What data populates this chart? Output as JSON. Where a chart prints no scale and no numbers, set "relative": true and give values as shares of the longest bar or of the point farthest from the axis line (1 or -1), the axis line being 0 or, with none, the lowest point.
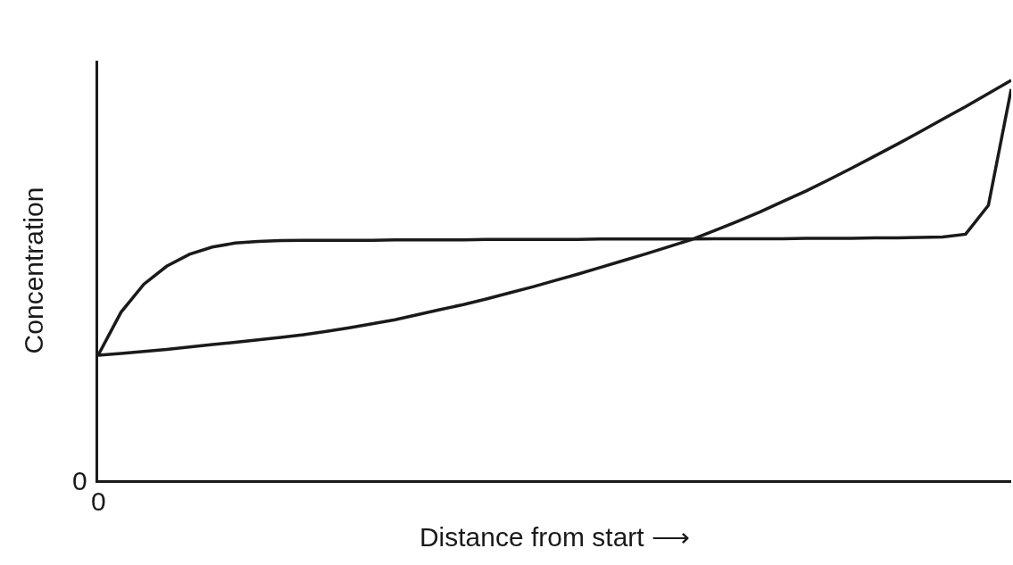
{
  "chart_data": {
    "type": "line",
    "relative": true,
    "xlabel": "Distance from start ⟶",
    "ylabel": "Concentration",
    "annotations": [
      "0",
      "0"
    ],
    "marker": "none",
    "line_style": "solid",
    "categories": [
      null,
      null,
      null,
      null,
      null,
      null,
      null,
      null,
      null,
      null,
      null,
      null,
      null,
      null,
      null,
      null,
      null,
      null,
      null,
      null,
      null,
      null,
      null,
      null,
      null,
      null,
      null,
      null,
      null,
      null,
      null,
      null,
      null,
      null,
      null,
      null,
      null,
      null,
      null,
      null,
      null
    ],
    "series": [
      {
        "color": "#1a1a1a",
        "values": [
          0.3125,
          0.317,
          0.322,
          0.327,
          0.333,
          0.339,
          0.345,
          0.351,
          0.357,
          0.364,
          0.372,
          0.381,
          0.391,
          0.401,
          0.414,
          0.427,
          0.439,
          0.453,
          0.468,
          0.483,
          0.499,
          0.515,
          0.532,
          0.549,
          0.566,
          0.584,
          0.602,
          0.624,
          0.647,
          0.671,
          0.697,
          0.723,
          0.751,
          0.78,
          0.81,
          0.84,
          0.871,
          0.903,
          0.934,
          0.967,
          1.0
        ]
      },
      {
        "color": "#1a1a1a",
        "values": [
          0.3125,
          0.42,
          0.49,
          0.535,
          0.565,
          0.583,
          0.593,
          0.597,
          0.599,
          0.6,
          0.6,
          0.6,
          0.6,
          0.601,
          0.601,
          0.601,
          0.601,
          0.602,
          0.602,
          0.602,
          0.602,
          0.602,
          0.603,
          0.603,
          0.603,
          0.603,
          0.603,
          0.604,
          0.604,
          0.604,
          0.604,
          0.605,
          0.605,
          0.605,
          0.606,
          0.606,
          0.607,
          0.608,
          0.615,
          0.6875,
          0.978
        ]
      }
    ]
  }
}
